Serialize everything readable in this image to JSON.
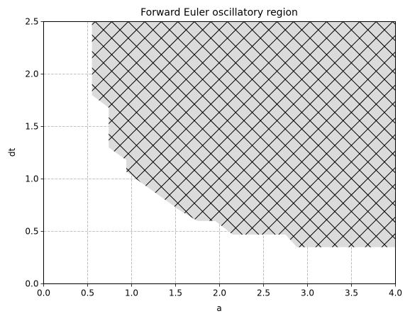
{
  "chart_data": {
    "type": "area",
    "title": "Forward Euler oscillatory region",
    "xlabel": "a",
    "ylabel": "dt",
    "xlim": [
      0.0,
      4.0
    ],
    "ylim": [
      0.0,
      2.5
    ],
    "xticks": [
      0.0,
      0.5,
      1.0,
      1.5,
      2.0,
      2.5,
      3.0,
      3.5,
      4.0
    ],
    "yticks": [
      0.0,
      0.5,
      1.0,
      1.5,
      2.0,
      2.5
    ],
    "xtick_labels": [
      "0.0",
      "0.5",
      "1.0",
      "1.5",
      "2.0",
      "2.5",
      "3.0",
      "3.5",
      "4.0"
    ],
    "ytick_labels": [
      "0.0",
      "0.5",
      "1.0",
      "1.5",
      "2.0",
      "2.5"
    ],
    "grid": true,
    "region": {
      "fill": "#d8d8d8",
      "hatch": "crosshatch",
      "boundary": [
        {
          "x": 0.55,
          "y": 2.5
        },
        {
          "x": 0.55,
          "y": 1.8
        },
        {
          "x": 0.74,
          "y": 1.68
        },
        {
          "x": 0.74,
          "y": 1.3
        },
        {
          "x": 0.94,
          "y": 1.18
        },
        {
          "x": 0.94,
          "y": 1.07
        },
        {
          "x": 1.15,
          "y": 0.94
        },
        {
          "x": 1.35,
          "y": 0.82
        },
        {
          "x": 1.55,
          "y": 0.7
        },
        {
          "x": 1.75,
          "y": 0.6
        },
        {
          "x": 1.95,
          "y": 0.6
        },
        {
          "x": 2.15,
          "y": 0.47
        },
        {
          "x": 2.75,
          "y": 0.47
        },
        {
          "x": 2.88,
          "y": 0.35
        },
        {
          "x": 4.0,
          "y": 0.35
        },
        {
          "x": 4.0,
          "y": 2.5
        }
      ]
    }
  },
  "colors": {
    "region_fill": "#d8d8d8",
    "hatch": "#000000",
    "grid": "#b0b0b0",
    "axes": "#000000"
  }
}
